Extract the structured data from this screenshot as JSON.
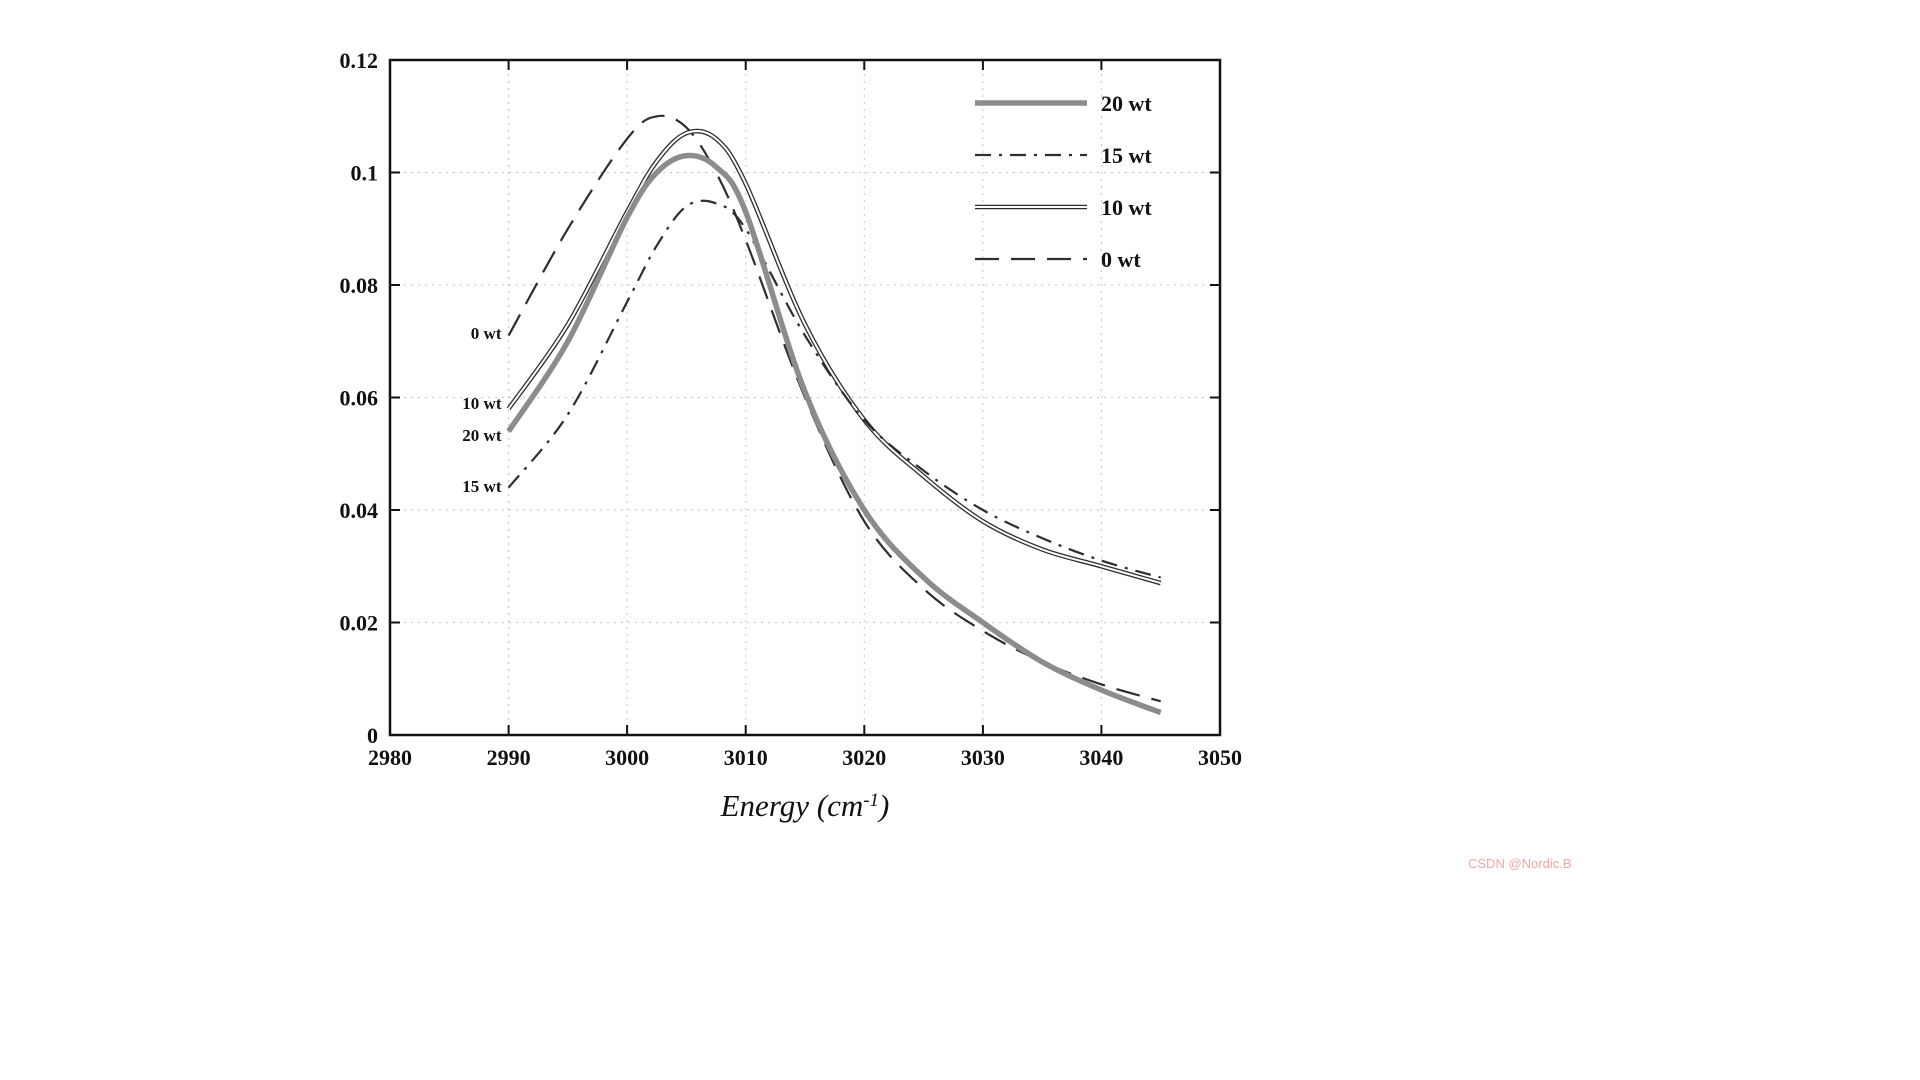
{
  "watermark": {
    "text": "CSDN @Nordic.B",
    "color": "#f2a7a7"
  },
  "xlabel": {
    "base": "Energy (cm",
    "exponent": "-1",
    "close": ")"
  },
  "chart_data": {
    "type": "line",
    "title": "",
    "xlabel": "Energy (cm⁻¹)",
    "ylabel": "",
    "xlim": [
      2980,
      3050
    ],
    "ylim": [
      0,
      0.12
    ],
    "xticks": [
      "2980",
      "2990",
      "3000",
      "3010",
      "3020",
      "3030",
      "3040",
      "3050"
    ],
    "yticks": [
      "0",
      "0.02",
      "0.04",
      "0.06",
      "0.08",
      "0.1",
      "0.12"
    ],
    "grid": "dotted",
    "legend_position": "top-right",
    "x": [
      2990,
      2995,
      3000,
      3002.5,
      3005,
      3007.5,
      3010,
      3015,
      3020,
      3025,
      3030,
      3035,
      3040,
      3045
    ],
    "series": [
      {
        "name": "20 wt",
        "line": "thick-solid",
        "color": "#8c8c8c",
        "values": [
          0.054,
          0.07,
          0.092,
          0.1,
          0.103,
          0.101,
          0.093,
          0.061,
          0.04,
          0.028,
          0.02,
          0.013,
          0.008,
          0.004
        ]
      },
      {
        "name": "15 wt",
        "line": "dash-dot",
        "color": "#2e2e2e",
        "values": [
          0.044,
          0.057,
          0.077,
          0.087,
          0.094,
          0.0945,
          0.09,
          0.071,
          0.056,
          0.047,
          0.04,
          0.035,
          0.031,
          0.028
        ]
      },
      {
        "name": "10 wt",
        "line": "double-solid",
        "color": "#2e2e2e",
        "values": [
          0.058,
          0.073,
          0.093,
          0.102,
          0.107,
          0.106,
          0.098,
          0.073,
          0.056,
          0.046,
          0.038,
          0.033,
          0.03,
          0.027
        ]
      },
      {
        "name": "0 wt",
        "line": "dash",
        "color": "#2e2e2e",
        "values": [
          0.071,
          0.09,
          0.106,
          0.11,
          0.108,
          0.1,
          0.088,
          0.06,
          0.038,
          0.026,
          0.0185,
          0.013,
          0.009,
          0.006
        ]
      }
    ],
    "annotations": [
      {
        "text": "0 wt",
        "x": 2989.4,
        "y": 0.0715
      },
      {
        "text": "10 wt",
        "x": 2989.4,
        "y": 0.059
      },
      {
        "text": "20 wt",
        "x": 2989.4,
        "y": 0.0533
      },
      {
        "text": "15 wt",
        "x": 2989.4,
        "y": 0.0443
      }
    ]
  }
}
